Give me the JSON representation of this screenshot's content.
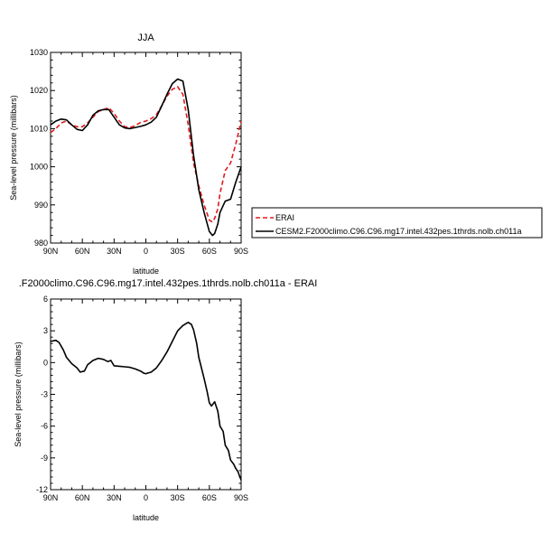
{
  "chart_data": [
    {
      "type": "line",
      "title": "JJA",
      "xlabel": "latitude",
      "ylabel": "Sea-level pressure (millibars)",
      "xlim": [
        90,
        -90
      ],
      "ylim": [
        980,
        1030
      ],
      "xticks": [
        90,
        60,
        30,
        0,
        -30,
        -60,
        -90
      ],
      "xtick_labels": [
        "90N",
        "60N",
        "30N",
        "0",
        "30S",
        "60S",
        "90S"
      ],
      "yticks": [
        980,
        990,
        1000,
        1010,
        1020,
        1030
      ],
      "ytick_labels": [
        "980",
        "990",
        "1000",
        "1010",
        "1020",
        "1030"
      ],
      "legend_position": "right",
      "series": [
        {
          "name": "ERAI",
          "color": "#e41a1c",
          "dash": "dashed",
          "x": [
            90,
            85,
            80,
            75,
            70,
            65,
            60,
            55,
            50,
            45,
            40,
            35,
            30,
            25,
            20,
            15,
            10,
            5,
            0,
            -5,
            -10,
            -15,
            -20,
            -25,
            -30,
            -35,
            -40,
            -45,
            -50,
            -55,
            -60,
            -63,
            -65,
            -68,
            -70,
            -75,
            -80,
            -85,
            -90
          ],
          "y": [
            1009,
            1010,
            1011.5,
            1012,
            1011,
            1010.5,
            1010.5,
            1011.5,
            1013,
            1014.5,
            1015,
            1015.5,
            1014,
            1012,
            1010.5,
            1010.3,
            1010.8,
            1011.6,
            1012,
            1012.6,
            1013.7,
            1016,
            1018.5,
            1020.3,
            1021,
            1019,
            1011,
            1001,
            995,
            990,
            986,
            985.5,
            986.5,
            989,
            993,
            999,
            1001,
            1006,
            1012
          ]
        },
        {
          "name": "CESM2.F2000climo.C96.C96.mg17.intel.432pes.1thrds.nolb.ch011a",
          "color": "#000000",
          "dash": "solid",
          "x": [
            90,
            85,
            80,
            75,
            70,
            65,
            60,
            55,
            50,
            45,
            40,
            35,
            30,
            25,
            20,
            15,
            10,
            5,
            0,
            -5,
            -10,
            -15,
            -20,
            -25,
            -30,
            -35,
            -40,
            -45,
            -50,
            -55,
            -60,
            -63,
            -65,
            -68,
            -70,
            -75,
            -80,
            -85,
            -90
          ],
          "y": [
            1011,
            1012,
            1012.5,
            1012.3,
            1011,
            1009.8,
            1009.5,
            1011,
            1013.5,
            1014.7,
            1015,
            1015,
            1013,
            1011,
            1010.2,
            1010,
            1010.3,
            1010.6,
            1011,
            1011.7,
            1013,
            1016,
            1019,
            1021.8,
            1023,
            1022.5,
            1015,
            1003,
            994,
            988,
            983,
            982,
            982.5,
            985,
            988,
            991,
            991.5,
            996,
            1000
          ]
        }
      ]
    },
    {
      "type": "line",
      "title": ".F2000climo.C96.C96.mg17.intel.432pes.1thrds.nolb.ch011a - ERAI",
      "xlabel": "latitude",
      "ylabel": "Sea-level pressure (millibars)",
      "xlim": [
        90,
        -90
      ],
      "ylim": [
        -12,
        6
      ],
      "xticks": [
        90,
        60,
        30,
        0,
        -30,
        -60,
        -90
      ],
      "xtick_labels": [
        "90N",
        "60N",
        "30N",
        "0",
        "30S",
        "60S",
        "90S"
      ],
      "yticks": [
        -12,
        -9,
        -6,
        -3,
        0,
        3,
        6
      ],
      "ytick_labels": [
        "-12",
        "-9",
        "-6",
        "-3",
        "0",
        "3",
        "6"
      ],
      "series": [
        {
          "color": "#000000",
          "dash": "solid",
          "x": [
            90,
            85,
            82,
            78,
            75,
            70,
            65,
            62,
            58,
            55,
            50,
            45,
            40,
            36,
            33,
            30,
            25,
            20,
            15,
            10,
            5,
            2,
            0,
            -5,
            -10,
            -15,
            -20,
            -25,
            -30,
            -35,
            -40,
            -43,
            -45,
            -48,
            -50,
            -55,
            -58,
            -60,
            -62,
            -65,
            -68,
            -70,
            -73,
            -75,
            -78,
            -80,
            -83,
            -85,
            -87,
            -90
          ],
          "y": [
            2,
            2.1,
            1.9,
            1.2,
            0.5,
            -0.1,
            -0.5,
            -0.9,
            -0.8,
            -0.2,
            0.2,
            0.4,
            0.3,
            0.1,
            0.2,
            -0.3,
            -0.35,
            -0.4,
            -0.45,
            -0.6,
            -0.8,
            -1,
            -1.05,
            -0.9,
            -0.5,
            0.2,
            1,
            2,
            3,
            3.5,
            3.8,
            3.6,
            3.1,
            1.8,
            0.5,
            -1.5,
            -2.8,
            -3.8,
            -4.1,
            -3.7,
            -4.6,
            -6,
            -6.5,
            -7.8,
            -8.3,
            -9.2,
            -9.6,
            -10,
            -10.3,
            -11.1
          ]
        }
      ]
    }
  ]
}
